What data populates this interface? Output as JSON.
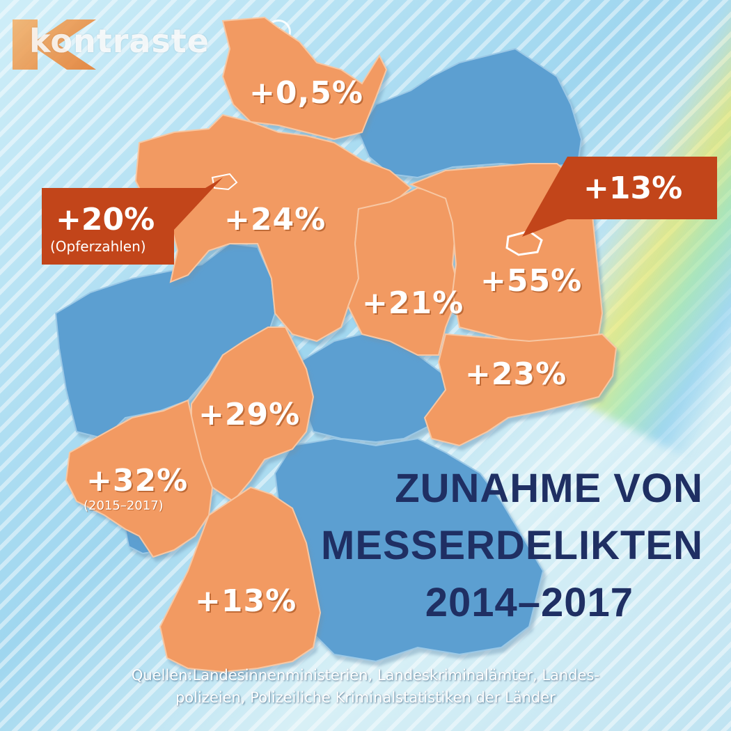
{
  "logo": {
    "text": "kontraste",
    "badge": "1"
  },
  "title": {
    "line1": "ZUNAHME VON",
    "line2": "MESSERDELIKTEN",
    "line3": "2014–2017"
  },
  "regions": {
    "schleswig_holstein": {
      "value": "+0,5%"
    },
    "niedersachsen": {
      "value": "+24%"
    },
    "bremen": {
      "value": "+20%",
      "note": "(Opferzahlen)"
    },
    "sachsen_anhalt": {
      "value": "+21%"
    },
    "brandenburg": {
      "value": "+55%"
    },
    "berlin": {
      "value": "+13%"
    },
    "sachsen": {
      "value": "+23%"
    },
    "hessen": {
      "value": "+29%"
    },
    "rheinland_pfalz": {
      "value": "+32%",
      "note": "(2015–2017)"
    },
    "baden_wuerttemberg": {
      "value": "+13%"
    }
  },
  "sources": {
    "line1": "Quellen:Landesinnenministerien, Landeskriminalämter, Landes-",
    "line2": "polizeien, Polizeiliche Kriminalstatistiken der Länder"
  },
  "colors": {
    "highlight_state": "#f29a62",
    "other_state": "#5b9fd1",
    "callout": "#c2451a",
    "title": "#1f2f63"
  }
}
